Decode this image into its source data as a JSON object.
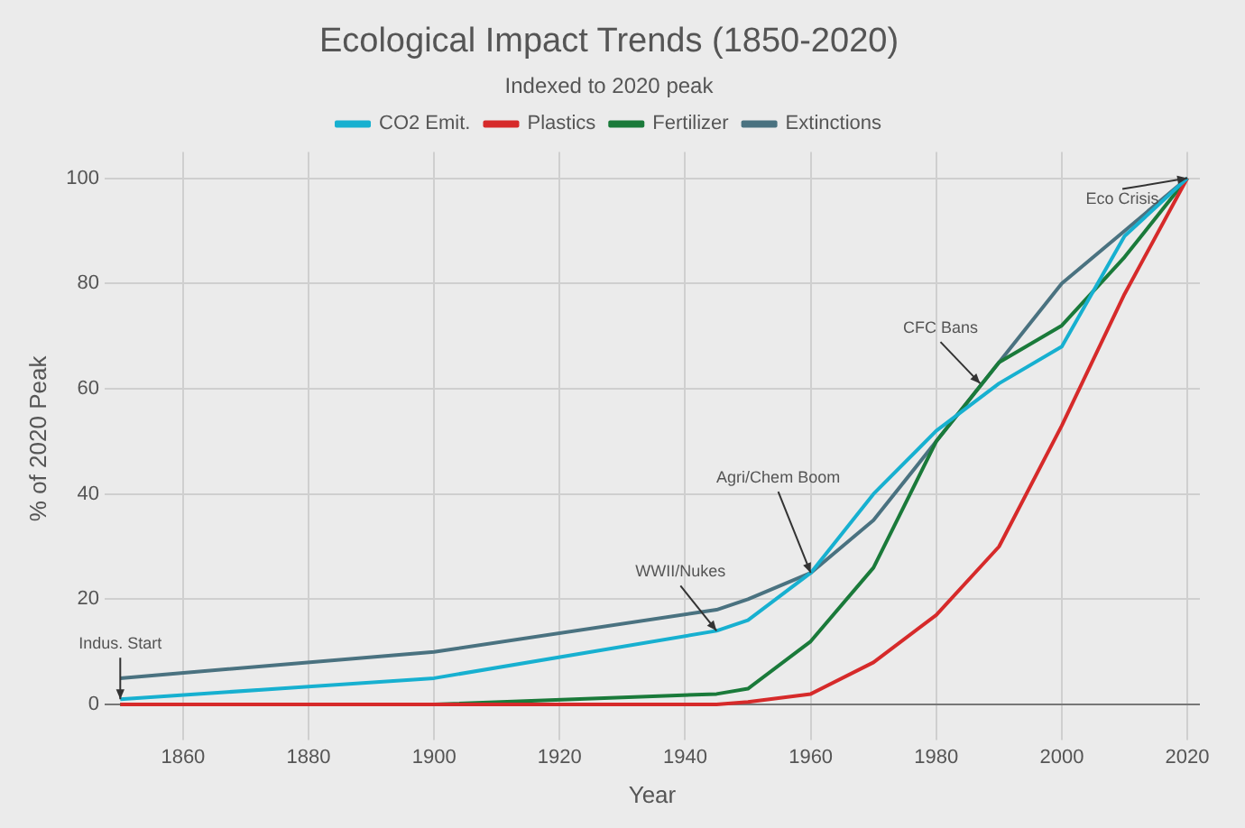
{
  "chart_data": {
    "type": "line",
    "title": "Ecological Impact Trends (1850-2020)",
    "subtitle": "Indexed to 2020 peak",
    "xlabel": "Year",
    "ylabel": "% of 2020 Peak",
    "x": [
      1850,
      1900,
      1945,
      1950,
      1960,
      1970,
      1980,
      1990,
      2000,
      2010,
      2020
    ],
    "series": [
      {
        "name": "CO2 Emit.",
        "color": "#17b0d0",
        "values": [
          1,
          5,
          14,
          16,
          25,
          40,
          52,
          61,
          68,
          89,
          100
        ]
      },
      {
        "name": "Plastics",
        "color": "#d62a2a",
        "values": [
          0,
          0,
          0,
          0.5,
          2,
          8,
          17,
          30,
          53,
          78,
          100
        ]
      },
      {
        "name": "Fertilizer",
        "color": "#1a7a3a",
        "values": [
          0,
          0,
          2,
          3,
          12,
          26,
          50,
          65,
          72,
          85,
          100
        ]
      },
      {
        "name": "Extinctions",
        "color": "#4a7280",
        "values": [
          5,
          10,
          18,
          20,
          25,
          35,
          50,
          65,
          80,
          90,
          100
        ]
      }
    ],
    "xlim": [
      1847.5,
      2022
    ],
    "xticks": [
      1860,
      1880,
      1900,
      1920,
      1940,
      1960,
      1980,
      2000,
      2020
    ],
    "ylim": [
      -4,
      105
    ],
    "yticks": [
      0,
      20,
      40,
      60,
      80,
      100
    ],
    "grid": true,
    "legend": "top",
    "marker": "none",
    "line_style": "solid",
    "annotations": [
      {
        "text": "Indus. Start",
        "x": 1850,
        "y": 1
      },
      {
        "text": "WWII/Nukes",
        "x": 1945,
        "y": 14
      },
      {
        "text": "Agri/Chem Boom",
        "x": 1960,
        "y": 25
      },
      {
        "text": "CFC Bans",
        "x": 1987,
        "y": 61
      },
      {
        "text": "Eco Crisis",
        "x": 2020,
        "y": 100
      }
    ]
  }
}
